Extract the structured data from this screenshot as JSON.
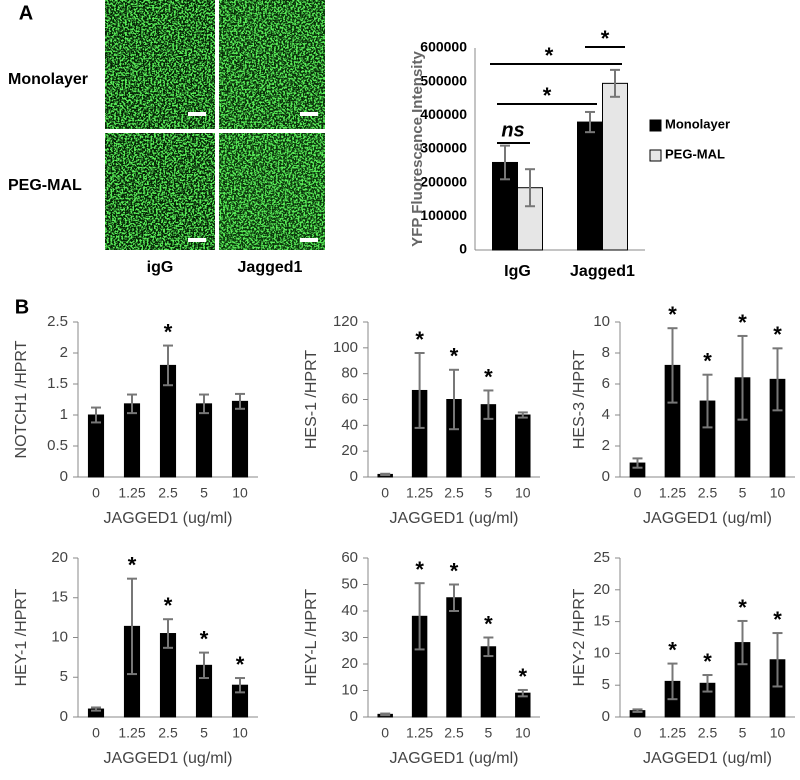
{
  "panel_labels": [
    "A",
    "B"
  ],
  "images": {
    "rows": [
      "Monolayer",
      "PEG-MAL"
    ],
    "columns": [
      "igG",
      "Jagged1"
    ]
  },
  "chart_data": [
    {
      "type": "bar",
      "ylabel": "YFP Fluorescence Intensity",
      "categories": [
        "IgG",
        "Jagged1"
      ],
      "series": [
        {
          "name": "Monolayer",
          "color": "#000000",
          "values": [
            260000,
            380000
          ],
          "errors": [
            50000,
            30000
          ]
        },
        {
          "name": "PEG-MAL",
          "color": "#e6e6e6",
          "values": [
            185000,
            495000
          ],
          "errors": [
            55000,
            40000
          ]
        }
      ],
      "ylim": [
        0,
        600000
      ],
      "yticks": [
        0,
        100000,
        200000,
        300000,
        400000,
        500000,
        600000
      ],
      "annotations": [
        "ns",
        "*",
        "*",
        "*"
      ]
    },
    {
      "type": "bar",
      "ylabel": "NOTCH1 /HPRT",
      "xlabel": "JAGGED1 (ug/ml)",
      "categories": [
        "0",
        "1.25",
        "2.5",
        "5",
        "10"
      ],
      "values": [
        1.0,
        1.18,
        1.8,
        1.18,
        1.22
      ],
      "errors": [
        0.12,
        0.15,
        0.32,
        0.15,
        0.12
      ],
      "color": "#000000",
      "ylim": [
        0,
        2.5
      ],
      "yticks": [
        0,
        0.5,
        1,
        1.5,
        2,
        2.5
      ],
      "marker": "*",
      "significant": [
        2
      ]
    },
    {
      "type": "bar",
      "ylabel": "HES-1 /HPRT",
      "xlabel": "JAGGED1 (ug/ml)",
      "categories": [
        "0",
        "1.25",
        "2.5",
        "5",
        "10"
      ],
      "values": [
        2,
        67,
        60,
        56,
        48
      ],
      "errors": [
        0.5,
        29,
        23,
        11,
        2
      ],
      "color": "#000000",
      "ylim": [
        0,
        120
      ],
      "yticks": [
        0,
        20,
        40,
        60,
        80,
        100,
        120
      ],
      "marker": "*",
      "significant": [
        1,
        2,
        3
      ]
    },
    {
      "type": "bar",
      "ylabel": "HES-3 /HPRT",
      "xlabel": "JAGGED1 (ug/ml)",
      "categories": [
        "0",
        "1.25",
        "2.5",
        "5",
        "10"
      ],
      "values": [
        0.9,
        7.2,
        4.9,
        6.4,
        6.3
      ],
      "errors": [
        0.3,
        2.4,
        1.7,
        2.7,
        2.0
      ],
      "color": "#000000",
      "ylim": [
        0,
        10
      ],
      "yticks": [
        0,
        2,
        4,
        6,
        8,
        10
      ],
      "marker": "*",
      "significant": [
        1,
        2,
        3,
        4
      ]
    },
    {
      "type": "bar",
      "ylabel": "HEY-1 /HPRT",
      "xlabel": "JAGGED1 (ug/ml)",
      "categories": [
        "0",
        "1.25",
        "2.5",
        "5",
        "10"
      ],
      "values": [
        1,
        11.4,
        10.5,
        6.5,
        4
      ],
      "errors": [
        0.2,
        6,
        1.8,
        1.6,
        0.9
      ],
      "color": "#000000",
      "ylim": [
        0,
        20
      ],
      "yticks": [
        0,
        5,
        10,
        15,
        20
      ],
      "marker": "*",
      "significant": [
        1,
        2,
        3,
        4
      ]
    },
    {
      "type": "bar",
      "ylabel": "HEY-L /HPRT",
      "xlabel": "JAGGED1 (ug/ml)",
      "categories": [
        "0",
        "1.25",
        "2.5",
        "5",
        "10"
      ],
      "values": [
        1,
        38,
        45,
        26.5,
        9
      ],
      "errors": [
        0.3,
        12.5,
        5,
        3.5,
        1.2
      ],
      "color": "#000000",
      "ylim": [
        0,
        60
      ],
      "yticks": [
        0,
        10,
        20,
        30,
        40,
        50,
        60
      ],
      "marker": "*",
      "significant": [
        1,
        2,
        3,
        4
      ]
    },
    {
      "type": "bar",
      "ylabel": "HEY-2 /HPRT",
      "xlabel": "JAGGED1 (ug/ml)",
      "categories": [
        "0",
        "1.25",
        "2.5",
        "5",
        "10"
      ],
      "values": [
        1,
        5.6,
        5.3,
        11.7,
        9
      ],
      "errors": [
        0.2,
        2.8,
        1.3,
        3.4,
        4.2
      ],
      "color": "#000000",
      "ylim": [
        0,
        25
      ],
      "yticks": [
        0,
        5,
        10,
        15,
        20,
        25
      ],
      "marker": "*",
      "significant": [
        1,
        2,
        3,
        4
      ]
    }
  ]
}
